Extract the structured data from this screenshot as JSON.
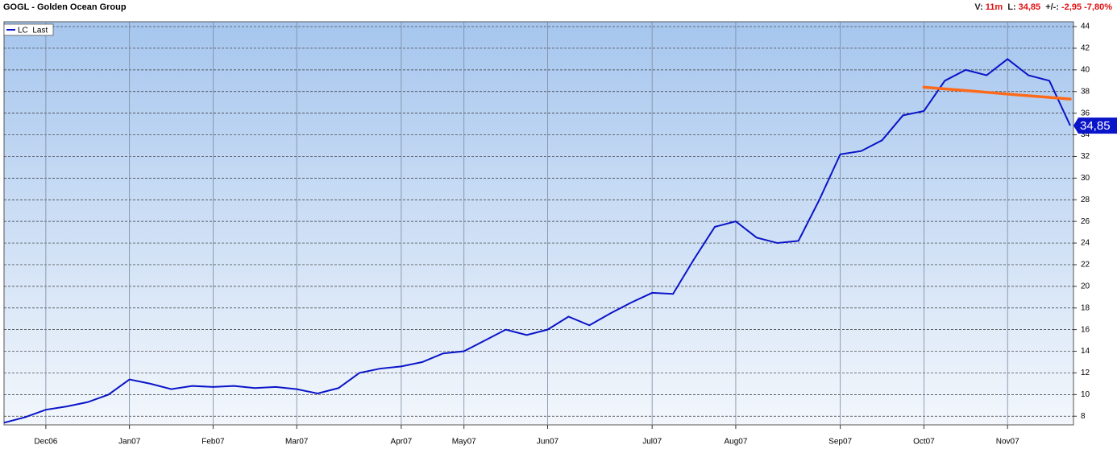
{
  "chart_data": {
    "type": "line",
    "header": {
      "title": "GOGL  - Golden Ocean Group",
      "v_label": "V:",
      "v_value": "11m",
      "l_label": "L:",
      "l_value": "34,85",
      "chg_label": "+/-:",
      "chg_value": "-2,95 -7,80%"
    },
    "categories": [
      null,
      null,
      "Dec06",
      null,
      null,
      null,
      "Jan07",
      null,
      null,
      null,
      "Feb07",
      null,
      null,
      null,
      "Mar07",
      null,
      null,
      null,
      null,
      "Apr07",
      null,
      null,
      "May07",
      null,
      null,
      null,
      "Jun07",
      null,
      null,
      null,
      null,
      "Jul07",
      null,
      null,
      null,
      "Aug07",
      null,
      null,
      null,
      null,
      "Sep07",
      null,
      null,
      null,
      "Oct07",
      null,
      null,
      null,
      "Nov07",
      null,
      null,
      null
    ],
    "series": [
      {
        "name": "LC  Last",
        "color": "#0a14c8",
        "values": [
          7.4,
          7.9,
          8.6,
          8.9,
          9.3,
          10.0,
          11.4,
          11.0,
          10.5,
          10.8,
          10.7,
          10.8,
          10.6,
          10.7,
          10.5,
          10.1,
          10.6,
          12.0,
          12.4,
          12.6,
          13.0,
          13.8,
          14.0,
          15.0,
          16.0,
          15.5,
          16.0,
          17.2,
          16.4,
          17.5,
          18.5,
          19.4,
          19.3,
          22.5,
          25.5,
          26.0,
          24.5,
          24.0,
          24.2,
          28.0,
          32.2,
          32.5,
          33.5,
          35.8,
          36.2,
          39.0,
          40.0,
          39.5,
          41.0,
          39.5,
          39.0,
          34.85
        ],
        "last_label": "34,85"
      }
    ],
    "trendline": {
      "color": "#ff6a1a",
      "values": [
        null,
        null,
        null,
        null,
        null,
        null,
        null,
        null,
        null,
        null,
        null,
        null,
        null,
        null,
        null,
        null,
        null,
        null,
        null,
        null,
        null,
        null,
        null,
        null,
        null,
        null,
        null,
        null,
        null,
        null,
        null,
        null,
        null,
        null,
        null,
        null,
        null,
        null,
        null,
        null,
        null,
        null,
        null,
        null,
        38.4,
        38.24,
        38.09,
        37.93,
        37.77,
        37.61,
        37.46,
        37.3
      ]
    },
    "ylim": [
      7.2,
      44.45
    ],
    "yticks": [
      8,
      10,
      12,
      14,
      16,
      18,
      20,
      22,
      24,
      26,
      28,
      30,
      32,
      34,
      36,
      38,
      40,
      42,
      44
    ],
    "grid": true
  }
}
